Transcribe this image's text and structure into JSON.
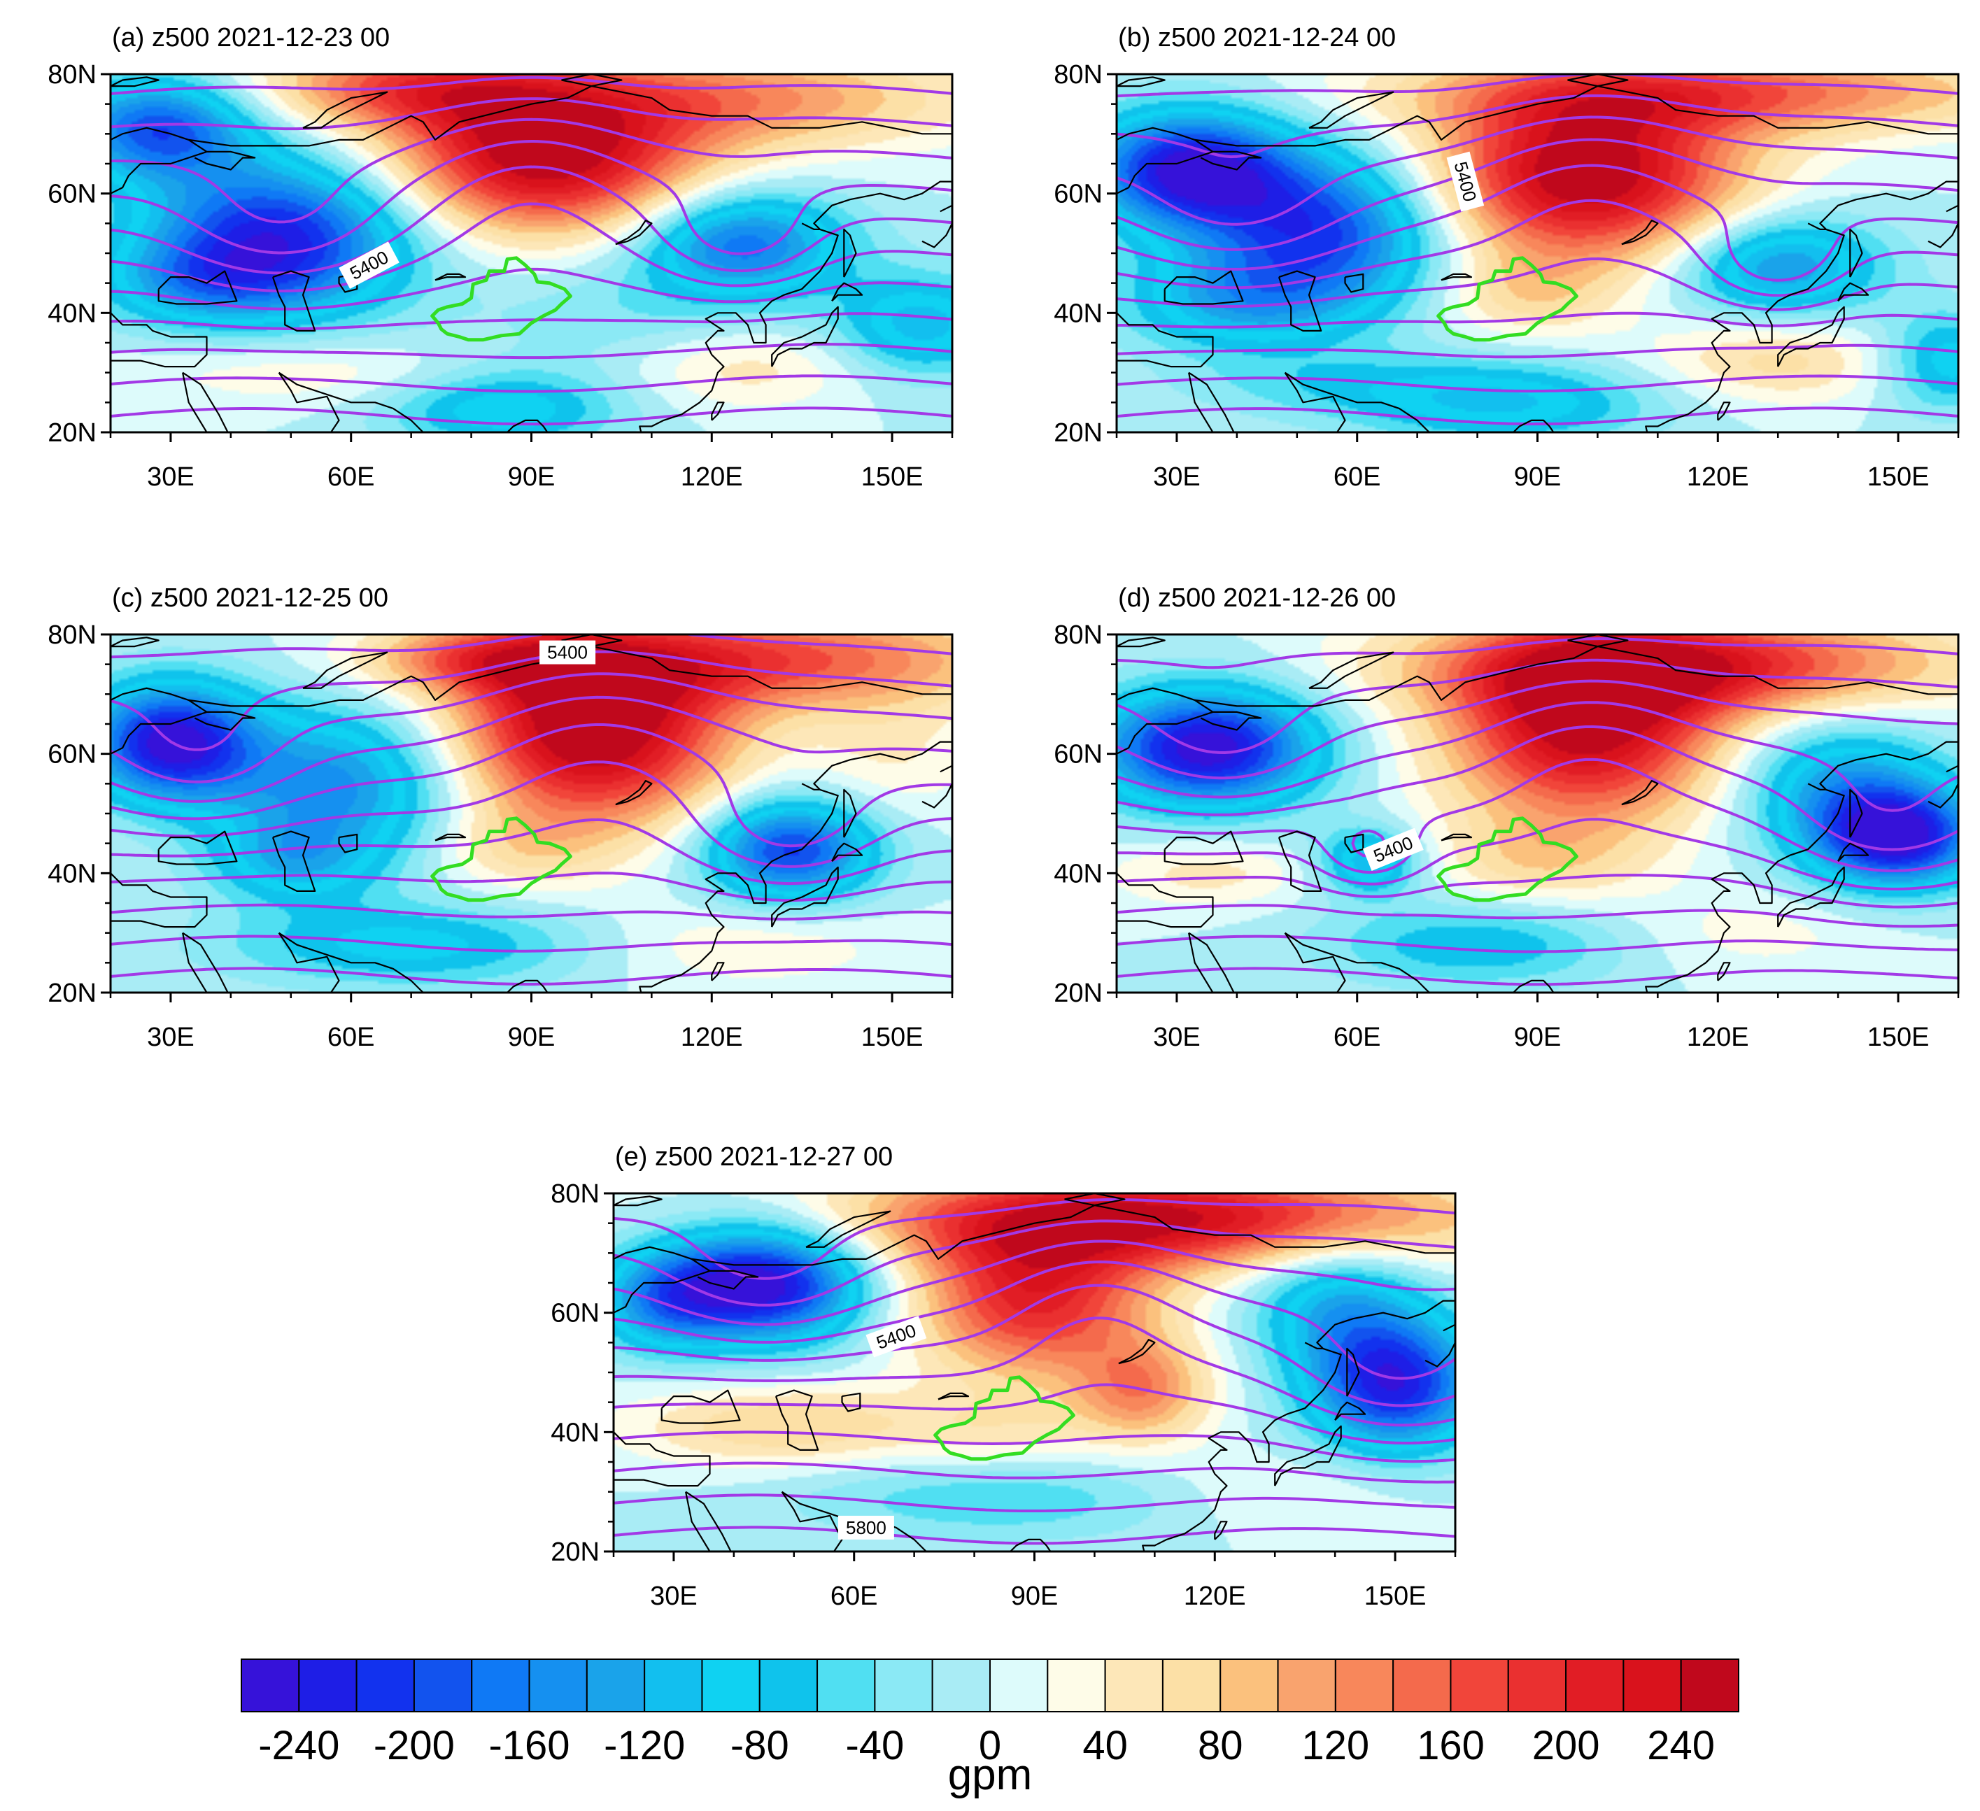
{
  "chart_data": [
    {
      "type": "heatmap",
      "panel": "a",
      "title": "(a) z500 2021-12-23 00",
      "lon_range": [
        20,
        160
      ],
      "lat_range": [
        20,
        80
      ],
      "x_ticks": [
        "30E",
        "60E",
        "90E",
        "120E",
        "150E"
      ],
      "y_ticks": [
        "20N",
        "40N",
        "60N",
        "80N"
      ],
      "contour_labels": [
        {
          "text": "5400",
          "lon": 63,
          "lat": 48,
          "angle": -28
        }
      ],
      "anomaly_centers": [
        {
          "lon": 28,
          "lat": 71,
          "sx": 11,
          "sy": 6,
          "value": -190
        },
        {
          "lon": 48,
          "lat": 53,
          "sx": 16,
          "sy": 9,
          "value": -230
        },
        {
          "lon": 35,
          "lat": 45,
          "sx": 12,
          "sy": 5,
          "value": -90
        },
        {
          "lon": 92,
          "lat": 66,
          "sx": 18,
          "sy": 9,
          "value": 260
        },
        {
          "lon": 70,
          "lat": 78,
          "sx": 18,
          "sy": 5,
          "value": 150
        },
        {
          "lon": 125,
          "lat": 76,
          "sx": 26,
          "sy": 6,
          "value": 120
        },
        {
          "lon": 125,
          "lat": 52,
          "sx": 12,
          "sy": 6,
          "value": -170
        },
        {
          "lon": 155,
          "lat": 38,
          "sx": 10,
          "sy": 6,
          "value": -110
        },
        {
          "lon": 110,
          "lat": 40,
          "sx": 20,
          "sy": 8,
          "value": -40
        },
        {
          "lon": 85,
          "lat": 24,
          "sx": 14,
          "sy": 5,
          "value": -100
        },
        {
          "lon": 55,
          "lat": 30,
          "sx": 22,
          "sy": 4,
          "value": 40
        },
        {
          "lon": 125,
          "lat": 31,
          "sx": 14,
          "sy": 5,
          "value": 60
        }
      ],
      "troughs": [
        {
          "lon": 48,
          "lat": 53,
          "depth": 13
        },
        {
          "lon": 125,
          "lat": 52,
          "depth": 9
        }
      ],
      "ridges": [
        {
          "lon": 90,
          "lat": 63,
          "height": 13
        }
      ]
    },
    {
      "type": "heatmap",
      "panel": "b",
      "title": "(b) z500 2021-12-24 00",
      "lon_range": [
        20,
        160
      ],
      "lat_range": [
        20,
        80
      ],
      "x_ticks": [
        "30E",
        "60E",
        "90E",
        "120E",
        "150E"
      ],
      "y_ticks": [
        "20N",
        "40N",
        "60N",
        "80N"
      ],
      "contour_labels": [
        {
          "text": "5400",
          "lon": 78,
          "lat": 62,
          "angle": 75
        }
      ],
      "anomaly_centers": [
        {
          "lon": 32,
          "lat": 64,
          "sx": 12,
          "sy": 7,
          "value": -250
        },
        {
          "lon": 55,
          "lat": 54,
          "sx": 14,
          "sy": 9,
          "value": -200
        },
        {
          "lon": 40,
          "lat": 42,
          "sx": 14,
          "sy": 6,
          "value": -110
        },
        {
          "lon": 98,
          "lat": 63,
          "sx": 18,
          "sy": 10,
          "value": 270
        },
        {
          "lon": 120,
          "lat": 77,
          "sx": 35,
          "sy": 5,
          "value": 150
        },
        {
          "lon": 130,
          "lat": 48,
          "sx": 12,
          "sy": 6,
          "value": -150
        },
        {
          "lon": 158,
          "lat": 32,
          "sx": 8,
          "sy": 6,
          "value": -100
        },
        {
          "lon": 88,
          "lat": 43,
          "sx": 10,
          "sy": 5,
          "value": 60
        },
        {
          "lon": 85,
          "lat": 25,
          "sx": 18,
          "sy": 5,
          "value": -100
        },
        {
          "lon": 130,
          "lat": 32,
          "sx": 15,
          "sy": 5,
          "value": 70
        },
        {
          "lon": 55,
          "lat": 28,
          "sx": 18,
          "sy": 4,
          "value": -40
        }
      ],
      "troughs": [
        {
          "lon": 40,
          "lat": 55,
          "depth": 14
        },
        {
          "lon": 130,
          "lat": 48,
          "depth": 8
        }
      ],
      "ridges": [
        {
          "lon": 98,
          "lat": 63,
          "height": 14
        }
      ]
    },
    {
      "type": "heatmap",
      "panel": "c",
      "title": "(c) z500 2021-12-25 00",
      "lon_range": [
        20,
        160
      ],
      "lat_range": [
        20,
        80
      ],
      "x_ticks": [
        "30E",
        "60E",
        "90E",
        "120E",
        "150E"
      ],
      "y_ticks": [
        "20N",
        "40N",
        "60N",
        "80N"
      ],
      "contour_labels": [
        {
          "text": "5400",
          "lon": 96,
          "lat": 77,
          "angle": 0
        }
      ],
      "anomaly_centers": [
        {
          "lon": 30,
          "lat": 62,
          "sx": 10,
          "sy": 7,
          "value": -250
        },
        {
          "lon": 58,
          "lat": 55,
          "sx": 14,
          "sy": 9,
          "value": -150
        },
        {
          "lon": 50,
          "lat": 42,
          "sx": 10,
          "sy": 5,
          "value": -90
        },
        {
          "lon": 100,
          "lat": 64,
          "sx": 16,
          "sy": 11,
          "value": 280
        },
        {
          "lon": 82,
          "lat": 76,
          "sx": 14,
          "sy": 4,
          "value": 120
        },
        {
          "lon": 130,
          "lat": 76,
          "sx": 28,
          "sy": 6,
          "value": 160
        },
        {
          "lon": 133,
          "lat": 44,
          "sx": 10,
          "sy": 6,
          "value": -210
        },
        {
          "lon": 88,
          "lat": 44,
          "sx": 10,
          "sy": 5,
          "value": 50
        },
        {
          "lon": 70,
          "lat": 28,
          "sx": 22,
          "sy": 5,
          "value": -90
        },
        {
          "lon": 150,
          "lat": 60,
          "sx": 10,
          "sy": 8,
          "value": 40
        },
        {
          "lon": 125,
          "lat": 28,
          "sx": 18,
          "sy": 5,
          "value": 40
        }
      ],
      "troughs": [
        {
          "lon": 35,
          "lat": 58,
          "depth": 12
        },
        {
          "lon": 133,
          "lat": 46,
          "depth": 11
        }
      ],
      "ridges": [
        {
          "lon": 100,
          "lat": 64,
          "height": 15
        }
      ]
    },
    {
      "type": "heatmap",
      "panel": "d",
      "title": "(d) z500 2021-12-26 00",
      "lon_range": [
        20,
        160
      ],
      "lat_range": [
        20,
        80
      ],
      "x_ticks": [
        "30E",
        "60E",
        "90E",
        "120E",
        "150E"
      ],
      "y_ticks": [
        "20N",
        "40N",
        "60N",
        "80N"
      ],
      "contour_labels": [
        {
          "text": "5400",
          "lon": 66,
          "lat": 44,
          "angle": -22
        }
      ],
      "anomaly_centers": [
        {
          "lon": 35,
          "lat": 61,
          "sx": 13,
          "sy": 7,
          "value": -260
        },
        {
          "lon": 62,
          "lat": 42,
          "sx": 6,
          "sy": 4,
          "value": -120
        },
        {
          "lon": 98,
          "lat": 64,
          "sx": 16,
          "sy": 11,
          "value": 250
        },
        {
          "lon": 115,
          "lat": 75,
          "sx": 30,
          "sy": 6,
          "value": 200
        },
        {
          "lon": 150,
          "lat": 46,
          "sx": 10,
          "sy": 6,
          "value": -240
        },
        {
          "lon": 140,
          "lat": 55,
          "sx": 12,
          "sy": 8,
          "value": -120
        },
        {
          "lon": 90,
          "lat": 42,
          "sx": 12,
          "sy": 5,
          "value": 60
        },
        {
          "lon": 80,
          "lat": 28,
          "sx": 18,
          "sy": 5,
          "value": -80
        },
        {
          "lon": 35,
          "lat": 40,
          "sx": 12,
          "sy": 4,
          "value": 50
        },
        {
          "lon": 125,
          "lat": 30,
          "sx": 16,
          "sy": 5,
          "value": 30
        }
      ],
      "troughs": [
        {
          "lon": 38,
          "lat": 60,
          "depth": 13
        },
        {
          "lon": 62,
          "lat": 43,
          "depth": 6
        },
        {
          "lon": 148,
          "lat": 46,
          "depth": 13
        }
      ],
      "ridges": [
        {
          "lon": 98,
          "lat": 62,
          "height": 13
        }
      ]
    },
    {
      "type": "heatmap",
      "panel": "e",
      "title": "(e) z500 2021-12-27 00",
      "lon_range": [
        20,
        160
      ],
      "lat_range": [
        20,
        80
      ],
      "x_ticks": [
        "30E",
        "60E",
        "90E",
        "120E",
        "150E"
      ],
      "y_ticks": [
        "20N",
        "40N",
        "60N",
        "80N"
      ],
      "contour_labels": [
        {
          "text": "5400",
          "lon": 67,
          "lat": 56,
          "angle": -20
        },
        {
          "text": "5800",
          "lon": 62,
          "lat": 24,
          "angle": 0
        }
      ],
      "anomaly_centers": [
        {
          "lon": 45,
          "lat": 65,
          "sx": 12,
          "sy": 7,
          "value": -260
        },
        {
          "lon": 28,
          "lat": 62,
          "sx": 8,
          "sy": 6,
          "value": -120
        },
        {
          "lon": 90,
          "lat": 62,
          "sx": 14,
          "sy": 9,
          "value": 200
        },
        {
          "lon": 110,
          "lat": 76,
          "sx": 35,
          "sy": 6,
          "value": 240
        },
        {
          "lon": 108,
          "lat": 47,
          "sx": 8,
          "sy": 6,
          "value": 120
        },
        {
          "lon": 150,
          "lat": 48,
          "sx": 10,
          "sy": 8,
          "value": -230
        },
        {
          "lon": 140,
          "lat": 62,
          "sx": 10,
          "sy": 8,
          "value": -110
        },
        {
          "lon": 85,
          "lat": 40,
          "sx": 12,
          "sy": 5,
          "value": 40
        },
        {
          "lon": 48,
          "lat": 41,
          "sx": 18,
          "sy": 5,
          "value": 80
        },
        {
          "lon": 85,
          "lat": 29,
          "sx": 25,
          "sy": 5,
          "value": -60
        },
        {
          "lon": 130,
          "lat": 30,
          "sx": 18,
          "sy": 5,
          "value": 30
        }
      ],
      "troughs": [
        {
          "lon": 45,
          "lat": 65,
          "depth": 13
        },
        {
          "lon": 150,
          "lat": 48,
          "depth": 13
        }
      ],
      "ridges": [
        {
          "lon": 100,
          "lat": 62,
          "height": 12
        }
      ]
    }
  ],
  "colorbar": {
    "title": "gpm",
    "tick_labels": [
      "-240",
      "-200",
      "-160",
      "-120",
      "-80",
      "-40",
      "0",
      "40",
      "80",
      "120",
      "160",
      "200",
      "240"
    ],
    "levels": [
      -260,
      -240,
      -220,
      -200,
      -180,
      -160,
      -140,
      -120,
      -100,
      -80,
      -60,
      -40,
      -20,
      0,
      20,
      40,
      60,
      80,
      100,
      120,
      140,
      160,
      180,
      200,
      220,
      240,
      260
    ],
    "colors": [
      "#3612d9",
      "#1e1ee6",
      "#1232ee",
      "#1253ee",
      "#0f79f5",
      "#1590f0",
      "#1aa3ea",
      "#12bfef",
      "#0fd2f2",
      "#0fc3ec",
      "#50dff2",
      "#8be9f5",
      "#a9ecf5",
      "#ddfbfb",
      "#fefce8",
      "#fde7b8",
      "#fce0a6",
      "#fbc17d",
      "#f9a36e",
      "#f8875b",
      "#f46a4c",
      "#f1453a",
      "#ea3030",
      "#e11d25",
      "#d9121c",
      "#c0081c"
    ]
  },
  "colors": {
    "height_contour": "#a239e6",
    "region_outline": "#33dd22",
    "coastline": "#000000"
  }
}
